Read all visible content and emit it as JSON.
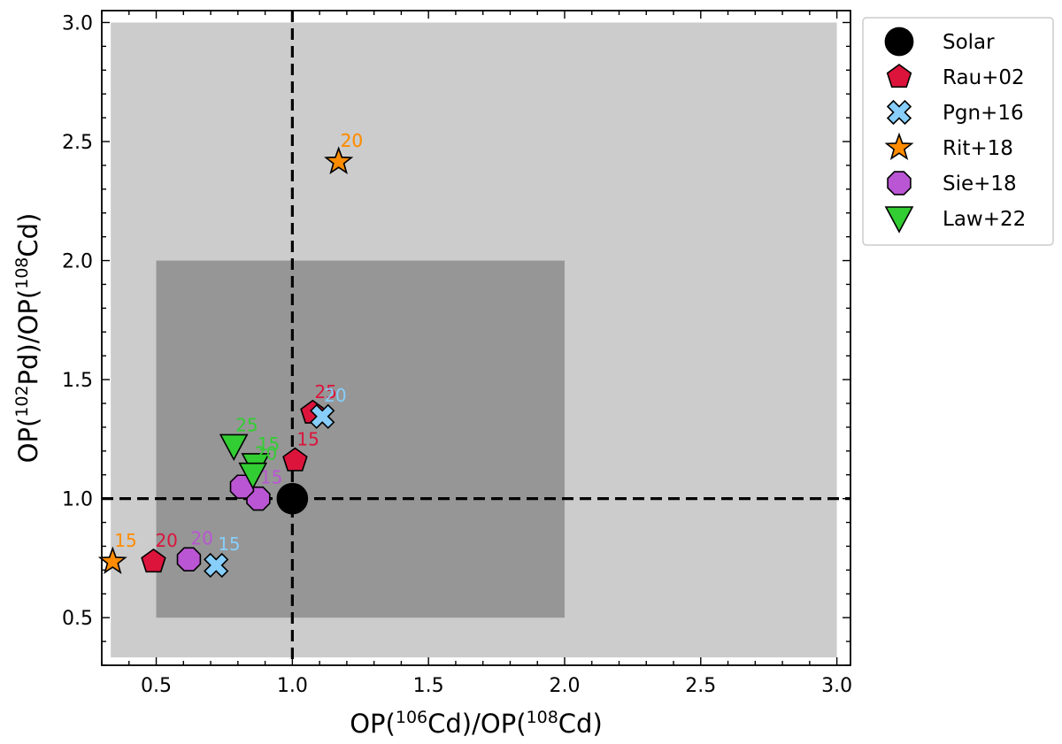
{
  "chart_data": {
    "type": "scatter",
    "title": "",
    "xlabel": {
      "pre": "OP(",
      "sup1": "106",
      "mid1": "Cd)/OP(",
      "sup2": "108",
      "post": "Cd)"
    },
    "ylabel": {
      "pre": "OP(",
      "sup1": "102",
      "mid1": "Pd)/OP(",
      "sup2": "108",
      "post": "Cd)"
    },
    "xlim": [
      0.3,
      3.05
    ],
    "ylim": [
      0.3,
      3.05
    ],
    "xticks": [
      "0.5",
      "1.0",
      "1.5",
      "2.0",
      "2.5",
      "3.0"
    ],
    "yticks": [
      "0.5",
      "1.0",
      "1.5",
      "2.0",
      "2.5",
      "3.0"
    ],
    "regions": [
      {
        "name": "outer",
        "x": [
          0.333,
          3.0
        ],
        "y": [
          0.333,
          3.0
        ],
        "color": "#cccccc"
      },
      {
        "name": "inner",
        "x": [
          0.5,
          2.0
        ],
        "y": [
          0.5,
          2.0
        ],
        "color": "#969696"
      }
    ],
    "reference_lines": {
      "x": 1.0,
      "y": 1.0
    },
    "legend_position": "outside-right-top",
    "series": [
      {
        "name": "Solar",
        "marker": "circle",
        "color": "#000000",
        "points": [
          {
            "x": 1.0,
            "y": 1.0,
            "label": ""
          }
        ]
      },
      {
        "name": "Rau+02",
        "marker": "pentagon",
        "color": "#dc143c",
        "points": [
          {
            "x": 1.01,
            "y": 1.16,
            "label": "15"
          },
          {
            "x": 0.49,
            "y": 0.735,
            "label": "20"
          },
          {
            "x": 1.075,
            "y": 1.36,
            "label": "25"
          }
        ]
      },
      {
        "name": "Pgn+16",
        "marker": "x",
        "color": "#87cefa",
        "points": [
          {
            "x": 0.72,
            "y": 0.72,
            "label": "15"
          },
          {
            "x": 1.11,
            "y": 1.345,
            "label": "20"
          }
        ]
      },
      {
        "name": "Rit+18",
        "marker": "star",
        "color": "#ff8c00",
        "points": [
          {
            "x": 0.34,
            "y": 0.735,
            "label": "15"
          },
          {
            "x": 1.17,
            "y": 2.415,
            "label": "20"
          },
          {
            "x": 1.17,
            "y": 2.415,
            "label": "20"
          }
        ]
      },
      {
        "name": "Sie+18",
        "marker": "octagon",
        "color": "#ba55d3",
        "points": [
          {
            "x": 0.875,
            "y": 1.0,
            "label": "15"
          },
          {
            "x": 0.62,
            "y": 0.745,
            "label": "20"
          },
          {
            "x": 0.815,
            "y": 1.05,
            "label": ""
          }
        ]
      },
      {
        "name": "Law+22",
        "marker": "triangle-down",
        "color": "#32cd32",
        "points": [
          {
            "x": 0.865,
            "y": 1.14,
            "label": "15"
          },
          {
            "x": 0.785,
            "y": 1.22,
            "label": "25"
          },
          {
            "x": 0.855,
            "y": 1.1,
            "label": "20"
          }
        ]
      }
    ]
  }
}
